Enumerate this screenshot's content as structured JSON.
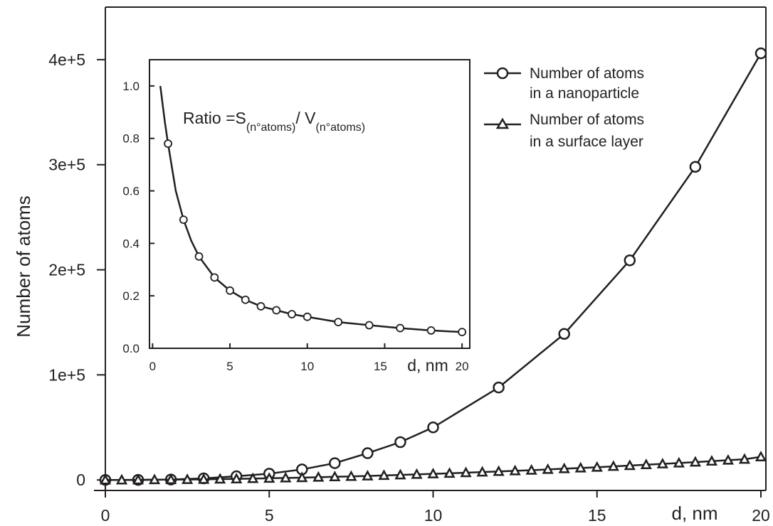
{
  "chart_data": [
    {
      "type": "line",
      "title": "",
      "xlabel": "d, nm",
      "ylabel": "Number of atoms",
      "xlim": [
        0,
        20
      ],
      "ylim": [
        -10000,
        450000
      ],
      "x_ticks": [
        "0",
        "5",
        "10",
        "15",
        "20"
      ],
      "y_ticks": [
        "0",
        "1e+5",
        "2e+5",
        "3e+5",
        "4e+5"
      ],
      "grid": false,
      "legend": "top-right",
      "series": [
        {
          "name": "Number of atoms in a nanoparticle",
          "legend_lines": [
            "Number of atoms",
            "in a nanoparticle"
          ],
          "marker": "circle",
          "x": [
            0,
            1,
            2,
            3,
            4,
            5,
            6,
            7,
            8,
            9,
            10,
            12,
            14,
            16,
            18,
            20
          ],
          "y": [
            0,
            50,
            400,
            1500,
            3500,
            6000,
            10000,
            16000,
            25500,
            36000,
            50000,
            88000,
            139000,
            209000,
            298000,
            406000
          ]
        },
        {
          "name": "Number of atoms in a surface layer",
          "legend_lines": [
            "Number of atoms",
            "in a surface layer"
          ],
          "marker": "triangle",
          "x": [
            0,
            0.5,
            1,
            1.5,
            2,
            2.5,
            3,
            3.5,
            4,
            4.5,
            5,
            5.5,
            6,
            6.5,
            7,
            7.5,
            8,
            8.5,
            9,
            9.5,
            10,
            10.5,
            11,
            11.5,
            12,
            12.5,
            13,
            13.5,
            14,
            14.5,
            15,
            15.5,
            16,
            16.5,
            17,
            17.5,
            18,
            18.5,
            19,
            19.5,
            20
          ],
          "y": [
            0,
            0,
            100,
            200,
            300,
            400,
            600,
            800,
            1000,
            1300,
            1600,
            1900,
            2200,
            2600,
            3000,
            3400,
            3800,
            4300,
            4800,
            5300,
            5800,
            6300,
            6900,
            7500,
            8100,
            8700,
            9300,
            10000,
            10700,
            11400,
            12100,
            12900,
            13700,
            14500,
            15300,
            16100,
            17000,
            17900,
            18800,
            19700,
            22000
          ]
        }
      ]
    },
    {
      "type": "line",
      "title": "",
      "annotation": {
        "prefix": "Ratio =S",
        "sub1": "(n°atoms)",
        "middle": "/ V",
        "sub2": "(n°atoms)"
      },
      "xlabel": "d, nm",
      "ylabel": "",
      "xlim": [
        -0.2,
        20.5
      ],
      "ylim": [
        0,
        1.1
      ],
      "x_ticks": [
        "0",
        "5",
        "10",
        "15",
        "20"
      ],
      "y_ticks": [
        "0.0",
        "0.2",
        "0.4",
        "0.6",
        "0.8",
        "1.0"
      ],
      "grid": false,
      "series": [
        {
          "marker": "circle",
          "line_x": [
            0.5,
            0.8,
            1,
            1.5,
            2,
            2.5,
            3,
            3.5,
            4,
            5,
            6,
            7,
            8,
            9,
            10,
            12,
            14,
            16,
            18,
            20
          ],
          "line_y": [
            1.0,
            0.86,
            0.78,
            0.6,
            0.49,
            0.41,
            0.35,
            0.31,
            0.27,
            0.22,
            0.185,
            0.16,
            0.145,
            0.13,
            0.12,
            0.1,
            0.088,
            0.077,
            0.068,
            0.062
          ],
          "x": [
            1,
            2,
            3,
            4,
            5,
            6,
            7,
            8,
            9,
            10,
            12,
            14,
            16,
            18,
            20
          ],
          "y": [
            0.78,
            0.49,
            0.35,
            0.27,
            0.22,
            0.185,
            0.16,
            0.145,
            0.13,
            0.12,
            0.1,
            0.088,
            0.077,
            0.068,
            0.062
          ]
        }
      ]
    }
  ]
}
